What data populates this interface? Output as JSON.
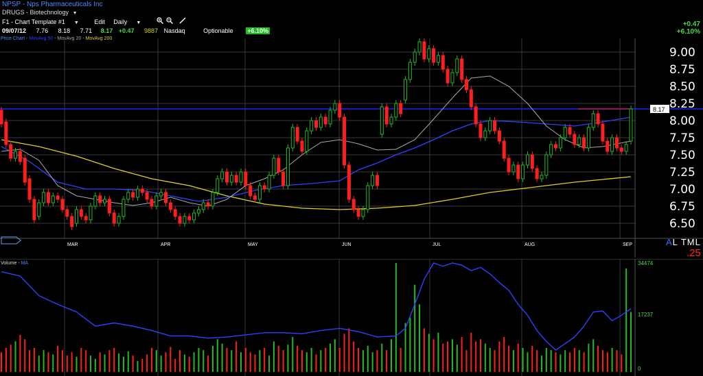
{
  "header": {
    "ticker_line": "NPSP - Nps Pharmaceuticals Inc",
    "sector_line": "DRUGS - Biotechnology"
  },
  "toolbar": {
    "template_label": "F1 - Chart Template #1",
    "edit_label": "Edit",
    "period_label": "Daily",
    "icons": [
      "zoom-in-icon",
      "zoom-out-icon",
      "draw-line-icon"
    ]
  },
  "quote": {
    "date": "09/07/12",
    "open": "7.76",
    "high": "8.18",
    "low": "7.71",
    "close": "8.17",
    "change": "+0.47",
    "volume": "9887",
    "exchange": "Nasdaq",
    "optionable": "Optionable",
    "pct_change": "+6.10%"
  },
  "right_panel": {
    "change": "+0.47",
    "pct_change": "+6.10%",
    "scale_buttons": [
      "A",
      "L",
      "T",
      "M",
      "L"
    ],
    "percent_step": ".25"
  },
  "legend": {
    "price_chart": "Price Chart",
    "mov_avg_50": "MovAvg 50",
    "mov_avg_20": "MovAvg 20",
    "mov_avg_200": "MovAvg 200"
  },
  "volume_panel": {
    "label": "Volume",
    "ma_label": "MA",
    "ticks": [
      "34474",
      "17237",
      "0"
    ]
  },
  "colors": {
    "up": "#22bb22",
    "down": "#ff1f1f",
    "ma50": "#3040ff",
    "ma20": "#aaaaaa",
    "ma200": "#e0d020",
    "grid": "#3a3a3a",
    "price_line": "#2020ff"
  },
  "chart_data": {
    "type": "candlestick",
    "y_ticks": [
      "9.00",
      "8.75",
      "8.50",
      "8.25",
      "8.00",
      "7.75",
      "7.50",
      "7.25",
      "7.00",
      "6.75",
      "6.50"
    ],
    "ylim": [
      6.4,
      9.2
    ],
    "months": [
      "MAR",
      "APR",
      "MAY",
      "JUN",
      "JUL",
      "AUG",
      "SEP"
    ],
    "last_price_label": "8.17",
    "last_price": 8.17,
    "candles": [
      [
        8.15,
        7.95
      ],
      [
        7.98,
        7.65
      ],
      [
        7.65,
        7.45
      ],
      [
        7.45,
        7.55
      ],
      [
        7.55,
        7.4
      ],
      [
        7.45,
        7.1
      ],
      [
        7.15,
        6.85
      ],
      [
        6.85,
        6.55
      ],
      [
        6.6,
        6.8
      ],
      [
        6.8,
        6.95
      ],
      [
        6.95,
        6.8
      ],
      [
        6.8,
        6.9
      ],
      [
        6.9,
        6.85
      ],
      [
        6.85,
        6.7
      ],
      [
        6.7,
        6.6
      ],
      [
        6.6,
        6.45
      ],
      [
        6.5,
        6.7
      ],
      [
        6.7,
        6.6
      ],
      [
        6.6,
        6.55
      ],
      [
        6.55,
        6.75
      ],
      [
        6.75,
        6.9
      ],
      [
        6.9,
        6.8
      ],
      [
        6.8,
        6.85
      ],
      [
        6.85,
        6.65
      ],
      [
        6.65,
        6.5
      ],
      [
        6.5,
        6.6
      ],
      [
        6.6,
        6.85
      ],
      [
        6.85,
        6.95
      ],
      [
        6.95,
        6.88
      ],
      [
        6.88,
        7.0
      ],
      [
        7.0,
        6.95
      ],
      [
        6.95,
        6.85
      ],
      [
        6.85,
        6.75
      ],
      [
        6.75,
        6.9
      ],
      [
        6.9,
        6.95
      ],
      [
        6.95,
        6.8
      ],
      [
        6.8,
        6.7
      ],
      [
        6.7,
        6.6
      ],
      [
        6.6,
        6.5
      ],
      [
        6.5,
        6.6
      ],
      [
        6.6,
        6.55
      ],
      [
        6.55,
        6.65
      ],
      [
        6.65,
        6.7
      ],
      [
        6.7,
        6.8
      ],
      [
        6.8,
        6.75
      ],
      [
        6.75,
        6.95
      ],
      [
        6.95,
        7.15
      ],
      [
        7.15,
        7.25
      ],
      [
        7.25,
        7.1
      ],
      [
        7.1,
        7.2
      ],
      [
        7.2,
        7.1
      ],
      [
        7.1,
        7.25
      ],
      [
        7.25,
        7.05
      ],
      [
        7.05,
        6.9
      ],
      [
        6.9,
        6.85
      ],
      [
        6.85,
        7.05
      ],
      [
        7.05,
        7.0
      ],
      [
        7.0,
        7.2
      ],
      [
        7.2,
        7.45
      ],
      [
        7.45,
        7.25
      ],
      [
        7.25,
        7.05
      ],
      [
        7.05,
        7.6
      ],
      [
        7.6,
        7.9
      ],
      [
        7.9,
        7.7
      ],
      [
        7.7,
        7.55
      ],
      [
        7.55,
        7.85
      ],
      [
        7.85,
        8.0
      ],
      [
        8.0,
        7.9
      ],
      [
        7.9,
        8.05
      ],
      [
        8.05,
        7.95
      ],
      [
        7.95,
        8.15
      ],
      [
        8.15,
        8.25
      ],
      [
        8.25,
        8.05
      ],
      [
        8.05,
        7.35
      ],
      [
        7.35,
        6.85
      ],
      [
        6.85,
        6.7
      ],
      [
        6.7,
        6.6
      ],
      [
        6.6,
        6.7
      ],
      [
        6.7,
        7.05
      ],
      [
        7.05,
        7.2
      ],
      [
        7.2,
        7.05
      ],
      [
        7.8,
        8.2
      ],
      [
        8.2,
        7.95
      ],
      [
        7.95,
        8.05
      ],
      [
        8.05,
        8.25
      ],
      [
        8.25,
        8.1
      ],
      [
        8.3,
        8.6
      ],
      [
        8.6,
        8.85
      ],
      [
        8.85,
        9.0
      ],
      [
        9.0,
        9.15
      ],
      [
        9.15,
        8.9
      ],
      [
        8.9,
        9.05
      ],
      [
        9.05,
        8.85
      ],
      [
        8.85,
        8.95
      ],
      [
        8.95,
        8.75
      ],
      [
        8.75,
        8.55
      ],
      [
        8.55,
        8.7
      ],
      [
        8.7,
        8.9
      ],
      [
        8.9,
        8.6
      ],
      [
        8.6,
        8.45
      ],
      [
        8.45,
        8.2
      ],
      [
        8.2,
        7.95
      ],
      [
        7.95,
        7.75
      ],
      [
        7.75,
        7.85
      ],
      [
        7.85,
        8.0
      ],
      [
        8.0,
        7.85
      ],
      [
        7.85,
        7.7
      ],
      [
        7.7,
        7.45
      ],
      [
        7.45,
        7.25
      ],
      [
        7.25,
        7.35
      ],
      [
        7.35,
        7.15
      ],
      [
        7.15,
        7.35
      ],
      [
        7.35,
        7.5
      ],
      [
        7.5,
        7.3
      ],
      [
        7.3,
        7.15
      ],
      [
        7.15,
        7.2
      ],
      [
        7.2,
        7.5
      ],
      [
        7.5,
        7.65
      ],
      [
        7.65,
        7.6
      ],
      [
        7.6,
        7.75
      ],
      [
        7.75,
        7.9
      ],
      [
        7.9,
        7.8
      ],
      [
        7.8,
        7.65
      ],
      [
        7.65,
        7.75
      ],
      [
        7.75,
        7.6
      ],
      [
        7.6,
        7.9
      ],
      [
        7.9,
        8.1
      ],
      [
        8.1,
        7.95
      ],
      [
        7.95,
        7.7
      ],
      [
        7.7,
        7.55
      ],
      [
        7.55,
        7.75
      ],
      [
        7.75,
        7.6
      ],
      [
        7.6,
        7.55
      ],
      [
        7.55,
        7.65
      ],
      [
        7.7,
        8.17
      ]
    ],
    "ma20": [
      [
        0,
        7.55
      ],
      [
        4,
        7.58
      ],
      [
        8,
        7.42
      ],
      [
        12,
        7.05
      ],
      [
        16,
        6.9
      ],
      [
        20,
        6.85
      ],
      [
        24,
        6.8
      ],
      [
        28,
        6.76
      ],
      [
        32,
        6.8
      ],
      [
        36,
        6.88
      ],
      [
        40,
        6.8
      ],
      [
        44,
        6.75
      ],
      [
        48,
        6.85
      ],
      [
        52,
        7.05
      ],
      [
        56,
        7.15
      ],
      [
        60,
        7.28
      ],
      [
        64,
        7.5
      ],
      [
        68,
        7.68
      ],
      [
        72,
        7.72
      ],
      [
        76,
        7.66
      ],
      [
        80,
        7.57
      ],
      [
        84,
        7.58
      ],
      [
        88,
        7.72
      ],
      [
        92,
        8.02
      ],
      [
        96,
        8.33
      ],
      [
        100,
        8.62
      ],
      [
        104,
        8.65
      ],
      [
        108,
        8.5
      ],
      [
        112,
        8.25
      ],
      [
        116,
        7.92
      ],
      [
        120,
        7.72
      ],
      [
        124,
        7.6
      ],
      [
        128,
        7.62
      ],
      [
        134,
        7.7
      ]
    ],
    "ma50": [
      [
        0,
        7.62
      ],
      [
        6,
        7.4
      ],
      [
        12,
        7.1
      ],
      [
        18,
        7.0
      ],
      [
        24,
        7.0
      ],
      [
        30,
        6.98
      ],
      [
        36,
        6.9
      ],
      [
        42,
        6.82
      ],
      [
        48,
        6.88
      ],
      [
        54,
        6.98
      ],
      [
        60,
        7.05
      ],
      [
        66,
        7.08
      ],
      [
        72,
        7.12
      ],
      [
        76,
        7.28
      ],
      [
        80,
        7.38
      ],
      [
        84,
        7.5
      ],
      [
        88,
        7.6
      ],
      [
        92,
        7.72
      ],
      [
        96,
        7.85
      ],
      [
        100,
        7.95
      ],
      [
        104,
        8.0
      ],
      [
        110,
        7.98
      ],
      [
        116,
        7.95
      ],
      [
        122,
        7.92
      ],
      [
        128,
        7.98
      ],
      [
        134,
        8.05
      ]
    ],
    "ma200": [
      [
        0,
        7.72
      ],
      [
        8,
        7.62
      ],
      [
        16,
        7.48
      ],
      [
        24,
        7.3
      ],
      [
        32,
        7.15
      ],
      [
        40,
        7.05
      ],
      [
        48,
        6.9
      ],
      [
        56,
        6.78
      ],
      [
        64,
        6.72
      ],
      [
        72,
        6.7
      ],
      [
        80,
        6.72
      ],
      [
        88,
        6.76
      ],
      [
        96,
        6.85
      ],
      [
        104,
        6.95
      ],
      [
        110,
        7.0
      ],
      [
        116,
        7.05
      ],
      [
        122,
        7.1
      ],
      [
        128,
        7.14
      ],
      [
        134,
        7.18
      ]
    ],
    "volume_ma": [
      [
        0,
        0.92
      ],
      [
        4,
        0.88
      ],
      [
        8,
        0.7
      ],
      [
        12,
        0.62
      ],
      [
        16,
        0.55
      ],
      [
        20,
        0.42
      ],
      [
        24,
        0.45
      ],
      [
        28,
        0.42
      ],
      [
        32,
        0.38
      ],
      [
        36,
        0.33
      ],
      [
        40,
        0.33
      ],
      [
        44,
        0.31
      ],
      [
        48,
        0.32
      ],
      [
        52,
        0.34
      ],
      [
        56,
        0.36
      ],
      [
        60,
        0.36
      ],
      [
        64,
        0.35
      ],
      [
        68,
        0.38
      ],
      [
        72,
        0.4
      ],
      [
        76,
        0.37
      ],
      [
        80,
        0.32
      ],
      [
        84,
        0.33
      ],
      [
        86,
        0.4
      ],
      [
        88,
        0.62
      ],
      [
        90,
        0.85
      ],
      [
        92,
        1.0
      ],
      [
        94,
        0.97
      ],
      [
        96,
        1.0
      ],
      [
        98,
        0.98
      ],
      [
        100,
        0.93
      ],
      [
        102,
        0.96
      ],
      [
        104,
        0.9
      ],
      [
        106,
        0.82
      ],
      [
        108,
        0.75
      ],
      [
        110,
        0.62
      ],
      [
        112,
        0.52
      ],
      [
        114,
        0.38
      ],
      [
        116,
        0.28
      ],
      [
        118,
        0.2
      ],
      [
        120,
        0.26
      ],
      [
        122,
        0.32
      ],
      [
        124,
        0.42
      ],
      [
        126,
        0.55
      ],
      [
        128,
        0.56
      ],
      [
        130,
        0.47
      ],
      [
        132,
        0.52
      ],
      [
        134,
        0.58
      ]
    ],
    "volume": [
      0.18,
      0.22,
      0.25,
      0.28,
      0.34,
      0.3,
      0.2,
      0.22,
      0.15,
      0.2,
      0.18,
      0.16,
      0.24,
      0.2,
      0.15,
      0.18,
      0.14,
      0.22,
      0.2,
      0.15,
      0.12,
      0.18,
      0.16,
      0.2,
      0.22,
      0.17,
      0.14,
      0.19,
      0.15,
      0.1,
      0.12,
      0.16,
      0.22,
      0.2,
      0.15,
      0.18,
      0.23,
      0.12,
      0.2,
      0.16,
      0.14,
      0.18,
      0.22,
      0.2,
      0.15,
      0.24,
      0.3,
      0.26,
      0.22,
      0.2,
      0.28,
      0.18,
      0.22,
      0.18,
      0.16,
      0.2,
      0.22,
      0.15,
      0.28,
      0.24,
      0.2,
      0.25,
      0.32,
      0.24,
      0.2,
      0.18,
      0.22,
      0.16,
      0.2,
      0.22,
      0.26,
      0.3,
      0.22,
      0.35,
      0.4,
      0.28,
      0.22,
      0.2,
      0.24,
      0.18,
      0.2,
      0.26,
      0.2,
      0.3,
      1.0,
      0.22,
      0.45,
      0.5,
      0.8,
      0.62,
      0.4,
      0.35,
      0.3,
      0.36,
      0.26,
      0.28,
      0.3,
      0.25,
      0.32,
      0.2,
      0.36,
      0.28,
      0.3,
      0.26,
      0.22,
      0.2,
      0.28,
      0.32,
      0.24,
      0.2,
      0.26,
      0.22,
      0.18,
      0.24,
      0.2,
      0.15,
      0.22,
      0.2,
      0.18,
      0.16,
      0.2,
      0.18,
      0.22,
      0.2,
      0.18,
      0.26,
      0.3,
      0.24,
      0.2,
      0.18,
      0.22,
      0.2,
      0.16,
      0.95,
      0.55
    ]
  }
}
